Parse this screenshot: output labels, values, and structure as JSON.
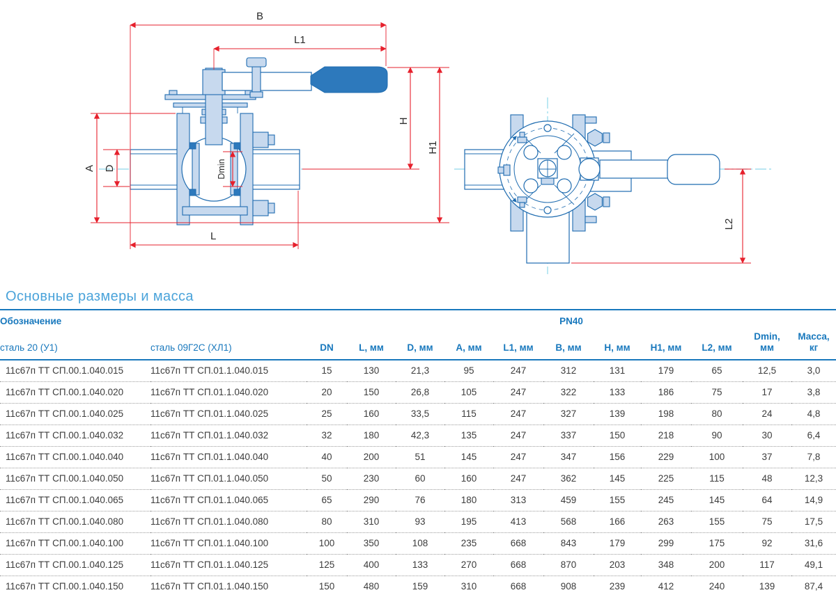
{
  "title": "Основные размеры и масса",
  "drawing": {
    "dims": {
      "b": "B",
      "l1": "L1",
      "h": "H",
      "h1": "H1",
      "a": "A",
      "d": "D",
      "dmin": "Dmin",
      "l": "L",
      "l2": "L2"
    },
    "colors": {
      "line": "#1f6cb0",
      "fill": "#c7d9ee",
      "solid": "#2d79bc",
      "dimension": "#e6202c",
      "centerline": "#90d8eb"
    }
  },
  "table": {
    "header": {
      "designation_label": "Обозначение",
      "pressure_label": "PN40",
      "steel1_label": "сталь 20 (У1)",
      "steel2_label": "сталь 09Г2С (ХЛ1)",
      "cols": [
        "DN",
        "L, мм",
        "D, мм",
        "A, мм",
        "L1, мм",
        "B, мм",
        "H, мм",
        "H1, мм",
        "L2, мм",
        "Dmin,\nмм",
        "Масса,\nкг"
      ]
    },
    "rows": [
      {
        "d1": "11с67п ТТ СП.00.1.040.015",
        "d2": "11с67п ТТ СП.01.1.040.015",
        "values": [
          "15",
          "130",
          "21,3",
          "95",
          "247",
          "312",
          "131",
          "179",
          "65",
          "12,5",
          "3,0"
        ]
      },
      {
        "d1": "11с67п ТТ СП.00.1.040.020",
        "d2": "11с67п ТТ СП.01.1.040.020",
        "values": [
          "20",
          "150",
          "26,8",
          "105",
          "247",
          "322",
          "133",
          "186",
          "75",
          "17",
          "3,8"
        ]
      },
      {
        "d1": "11с67п ТТ СП.00.1.040.025",
        "d2": "11с67п ТТ СП.01.1.040.025",
        "values": [
          "25",
          "160",
          "33,5",
          "115",
          "247",
          "327",
          "139",
          "198",
          "80",
          "24",
          "4,8"
        ]
      },
      {
        "d1": "11с67п ТТ СП.00.1.040.032",
        "d2": "11с67п ТТ СП.01.1.040.032",
        "values": [
          "32",
          "180",
          "42,3",
          "135",
          "247",
          "337",
          "150",
          "218",
          "90",
          "30",
          "6,4"
        ]
      },
      {
        "d1": "11с67п ТТ СП.00.1.040.040",
        "d2": "11с67п ТТ СП.01.1.040.040",
        "values": [
          "40",
          "200",
          "51",
          "145",
          "247",
          "347",
          "156",
          "229",
          "100",
          "37",
          "7,8"
        ]
      },
      {
        "d1": "11с67п ТТ СП.00.1.040.050",
        "d2": "11с67п ТТ СП.01.1.040.050",
        "values": [
          "50",
          "230",
          "60",
          "160",
          "247",
          "362",
          "145",
          "225",
          "115",
          "48",
          "12,3"
        ]
      },
      {
        "d1": "11с67п ТТ СП.00.1.040.065",
        "d2": "11с67п ТТ СП.01.1.040.065",
        "values": [
          "65",
          "290",
          "76",
          "180",
          "313",
          "459",
          "155",
          "245",
          "145",
          "64",
          "14,9"
        ]
      },
      {
        "d1": "11с67п ТТ СП.00.1.040.080",
        "d2": "11с67п ТТ СП.01.1.040.080",
        "values": [
          "80",
          "310",
          "93",
          "195",
          "413",
          "568",
          "166",
          "263",
          "155",
          "75",
          "17,5"
        ]
      },
      {
        "d1": "11с67п ТТ СП.00.1.040.100",
        "d2": "11с67п ТТ СП.01.1.040.100",
        "values": [
          "100",
          "350",
          "108",
          "235",
          "668",
          "843",
          "179",
          "299",
          "175",
          "92",
          "31,6"
        ]
      },
      {
        "d1": "11с67п ТТ СП.00.1.040.125",
        "d2": "11с67п ТТ СП.01.1.040.125",
        "values": [
          "125",
          "400",
          "133",
          "270",
          "668",
          "870",
          "203",
          "348",
          "200",
          "117",
          "49,1"
        ]
      },
      {
        "d1": "11с67п ТТ СП.00.1.040.150",
        "d2": "11с67п ТТ СП.01.1.040.150",
        "values": [
          "150",
          "480",
          "159",
          "310",
          "668",
          "908",
          "239",
          "412",
          "240",
          "139",
          "87,4"
        ]
      }
    ]
  }
}
